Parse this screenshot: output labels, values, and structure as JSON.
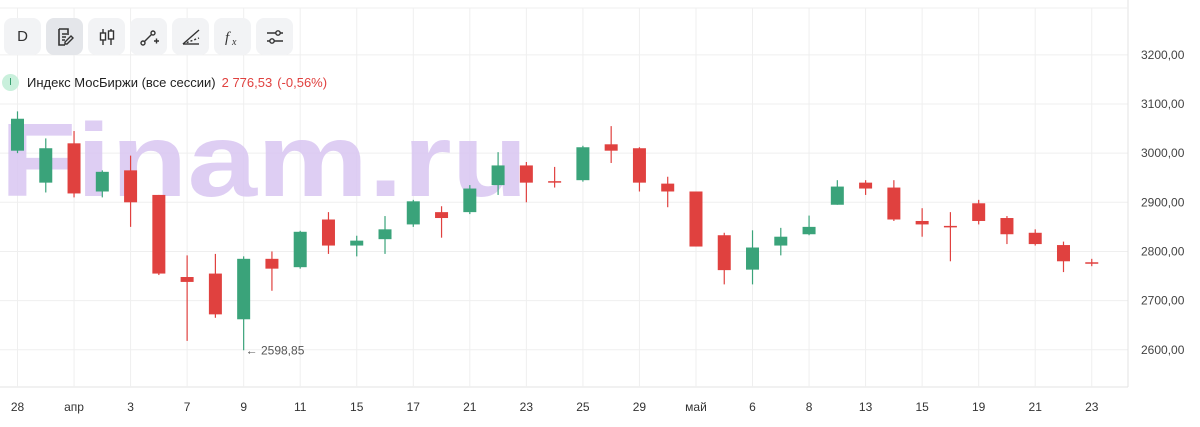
{
  "toolbar": {
    "items": [
      {
        "id": "interval",
        "label": "D",
        "icon": "interval-text"
      },
      {
        "id": "chart-type",
        "label": "",
        "icon": "document-pen-icon"
      },
      {
        "id": "candles",
        "label": "",
        "icon": "candlestick-icon"
      },
      {
        "id": "draw-line",
        "label": "",
        "icon": "line-draw-icon"
      },
      {
        "id": "draw-tools",
        "label": "",
        "icon": "ray-draw-icon"
      },
      {
        "id": "indicators",
        "label": "",
        "icon": "function-icon"
      },
      {
        "id": "settings",
        "label": "",
        "icon": "sliders-icon"
      }
    ]
  },
  "legend": {
    "name": "Индекс МосБиржи (все сессии)",
    "value": "2 776,53",
    "change": "(-0,56%)",
    "badge": "I"
  },
  "watermark": "Finam.ru",
  "colors": {
    "up": "#3aa37a",
    "down": "#e0413f",
    "grid": "#efefef",
    "watermark": "#d9c6f2"
  },
  "chart_data": {
    "type": "candlestick",
    "ylim": [
      2540,
      3280
    ],
    "y_ticks": [
      "3200,00",
      "3100,00",
      "3000,00",
      "2900,00",
      "2800,00",
      "2700,00",
      "2600,00"
    ],
    "y_tick_values": [
      3200,
      3100,
      3000,
      2900,
      2800,
      2700,
      2600
    ],
    "x_labels": [
      "28",
      "апр",
      "3",
      "7",
      "9",
      "11",
      "15",
      "17",
      "21",
      "23",
      "25",
      "29",
      "май",
      "6",
      "8",
      "13",
      "15",
      "19",
      "21",
      "23"
    ],
    "annotation": {
      "text": "← 2598,85",
      "value": 2598.85,
      "candle_index": 8
    },
    "candles": [
      {
        "o": 3005,
        "h": 3085,
        "l": 3000,
        "c": 3070
      },
      {
        "o": 2940,
        "h": 3030,
        "l": 2920,
        "c": 3010
      },
      {
        "o": 3020,
        "h": 3045,
        "l": 2910,
        "c": 2918
      },
      {
        "o": 2922,
        "h": 2965,
        "l": 2910,
        "c": 2962
      },
      {
        "o": 2965,
        "h": 2995,
        "l": 2850,
        "c": 2900
      },
      {
        "o": 2915,
        "h": 2915,
        "l": 2752,
        "c": 2755
      },
      {
        "o": 2748,
        "h": 2792,
        "l": 2618,
        "c": 2738
      },
      {
        "o": 2755,
        "h": 2795,
        "l": 2665,
        "c": 2672
      },
      {
        "o": 2662,
        "h": 2790,
        "l": 2599,
        "c": 2785
      },
      {
        "o": 2785,
        "h": 2800,
        "l": 2720,
        "c": 2765
      },
      {
        "o": 2768,
        "h": 2842,
        "l": 2765,
        "c": 2840
      },
      {
        "o": 2865,
        "h": 2880,
        "l": 2795,
        "c": 2812
      },
      {
        "o": 2812,
        "h": 2832,
        "l": 2790,
        "c": 2822
      },
      {
        "o": 2825,
        "h": 2872,
        "l": 2795,
        "c": 2845
      },
      {
        "o": 2855,
        "h": 2905,
        "l": 2850,
        "c": 2902
      },
      {
        "o": 2880,
        "h": 2892,
        "l": 2828,
        "c": 2868
      },
      {
        "o": 2880,
        "h": 2935,
        "l": 2876,
        "c": 2928
      },
      {
        "o": 2935,
        "h": 3002,
        "l": 2915,
        "c": 2975
      },
      {
        "o": 2975,
        "h": 2982,
        "l": 2900,
        "c": 2940
      },
      {
        "o": 2943,
        "h": 2972,
        "l": 2930,
        "c": 2942
      },
      {
        "o": 2945,
        "h": 3015,
        "l": 2942,
        "c": 3012
      },
      {
        "o": 3018,
        "h": 3055,
        "l": 2980,
        "c": 3005
      },
      {
        "o": 3010,
        "h": 3012,
        "l": 2922,
        "c": 2940
      },
      {
        "o": 2938,
        "h": 2952,
        "l": 2890,
        "c": 2922
      },
      {
        "o": 2922,
        "h": 2922,
        "l": 2810,
        "c": 2810
      },
      {
        "o": 2833,
        "h": 2838,
        "l": 2733,
        "c": 2762
      },
      {
        "o": 2763,
        "h": 2843,
        "l": 2733,
        "c": 2808
      },
      {
        "o": 2812,
        "h": 2848,
        "l": 2792,
        "c": 2830
      },
      {
        "o": 2835,
        "h": 2873,
        "l": 2833,
        "c": 2850
      },
      {
        "o": 2895,
        "h": 2945,
        "l": 2895,
        "c": 2932
      },
      {
        "o": 2940,
        "h": 2945,
        "l": 2915,
        "c": 2928
      },
      {
        "o": 2930,
        "h": 2945,
        "l": 2862,
        "c": 2865
      },
      {
        "o": 2862,
        "h": 2888,
        "l": 2830,
        "c": 2855
      },
      {
        "o": 2852,
        "h": 2880,
        "l": 2780,
        "c": 2850
      },
      {
        "o": 2898,
        "h": 2905,
        "l": 2855,
        "c": 2862
      },
      {
        "o": 2868,
        "h": 2872,
        "l": 2815,
        "c": 2835
      },
      {
        "o": 2838,
        "h": 2845,
        "l": 2812,
        "c": 2815
      },
      {
        "o": 2813,
        "h": 2820,
        "l": 2758,
        "c": 2780
      },
      {
        "o": 2778,
        "h": 2785,
        "l": 2770,
        "c": 2777
      }
    ]
  }
}
